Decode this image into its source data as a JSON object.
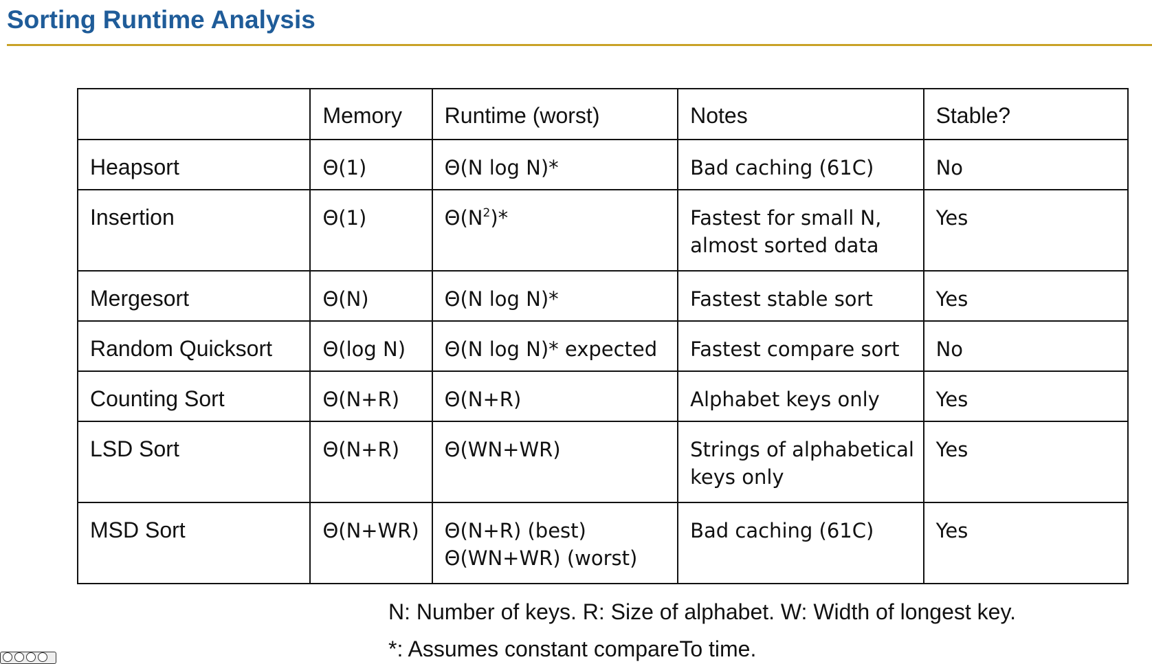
{
  "title": "Sorting Runtime Analysis",
  "table": {
    "headers": [
      "",
      "Memory",
      "Runtime (worst)",
      "Notes",
      "Stable?"
    ],
    "rows": [
      {
        "name": "Heapsort",
        "memory": "Θ(1)",
        "runtime": [
          "Θ(N log N)*"
        ],
        "notes": [
          "Bad caching (61C)"
        ],
        "stable": "No"
      },
      {
        "name": "Insertion",
        "memory": "Θ(1)",
        "runtime_base": "Θ(N",
        "runtime_sup": "2",
        "runtime_tail": ")*",
        "notes": [
          "Fastest for small N,",
          "almost sorted data"
        ],
        "stable": "Yes"
      },
      {
        "name": "Mergesort",
        "memory": "Θ(N)",
        "runtime": [
          "Θ(N log N)*"
        ],
        "notes": [
          "Fastest stable sort"
        ],
        "stable": "Yes"
      },
      {
        "name": "Random Quicksort",
        "memory": "Θ(log N)",
        "runtime": [
          "Θ(N log N)* expected"
        ],
        "notes": [
          "Fastest compare sort"
        ],
        "stable": "No"
      },
      {
        "name": "Counting Sort",
        "memory": "Θ(N+R)",
        "runtime": [
          "Θ(N+R)"
        ],
        "notes": [
          "Alphabet keys only"
        ],
        "stable": "Yes"
      },
      {
        "name": "LSD Sort",
        "memory": "Θ(N+R)",
        "runtime": [
          "Θ(WN+WR)"
        ],
        "notes": [
          "Strings of alphabetical",
          "keys only"
        ],
        "stable": "Yes"
      },
      {
        "name": "MSD Sort",
        "memory": "Θ(N+WR)",
        "runtime": [
          "Θ(N+R) (best)",
          "Θ(WN+WR) (worst)"
        ],
        "notes": [
          "Bad caching (61C)"
        ],
        "stable": "Yes"
      }
    ]
  },
  "footnotes": [
    "N: Number of keys. R: Size of alphabet. W: Width of longest key.",
    "*: Assumes constant compareTo time."
  ],
  "colors": {
    "title": "#1f5c99",
    "rule": "#c9a227"
  },
  "license_icon": "creative-commons-by-nc-sa-icon"
}
